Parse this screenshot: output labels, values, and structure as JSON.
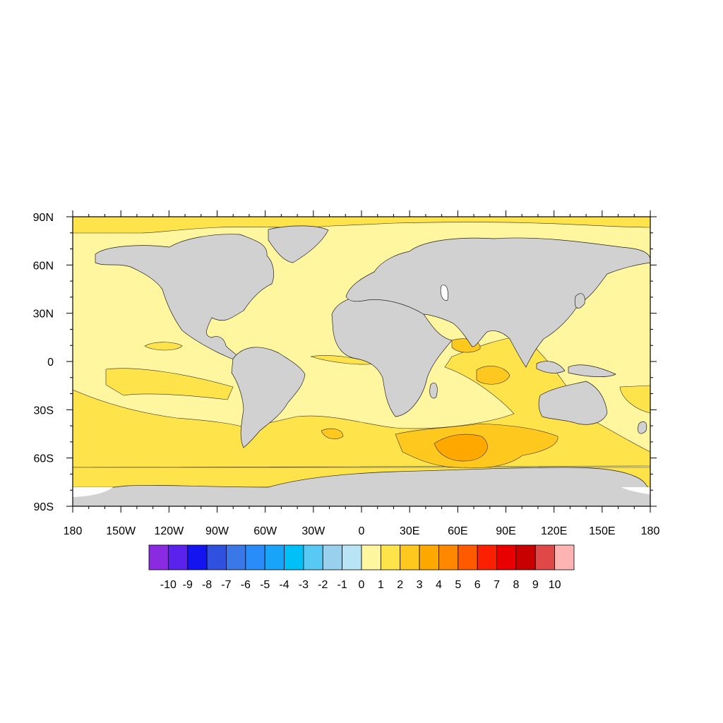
{
  "map": {
    "projection": "cylindrical-equidistant",
    "lon_range": [
      -180,
      180
    ],
    "lat_range": [
      -90,
      90
    ],
    "land_color": "#d1d1d1",
    "ocean_base_color": "#fff69f",
    "x_ticks": [
      {
        "lon": -180,
        "label": "180"
      },
      {
        "lon": -150,
        "label": "150W"
      },
      {
        "lon": -120,
        "label": "120W"
      },
      {
        "lon": -90,
        "label": "90W"
      },
      {
        "lon": -60,
        "label": "60W"
      },
      {
        "lon": -30,
        "label": "30W"
      },
      {
        "lon": 0,
        "label": "0"
      },
      {
        "lon": 30,
        "label": "30E"
      },
      {
        "lon": 60,
        "label": "60E"
      },
      {
        "lon": 90,
        "label": "90E"
      },
      {
        "lon": 120,
        "label": "120E"
      },
      {
        "lon": 150,
        "label": "150E"
      },
      {
        "lon": 180,
        "label": "180"
      }
    ],
    "y_ticks": [
      {
        "lat": 90,
        "label": "90N"
      },
      {
        "lat": 60,
        "label": "60N"
      },
      {
        "lat": 30,
        "label": "30N"
      },
      {
        "lat": 0,
        "label": "0"
      },
      {
        "lat": -30,
        "label": "30S"
      },
      {
        "lat": -60,
        "label": "60S"
      },
      {
        "lat": -90,
        "label": "90S"
      }
    ]
  },
  "colorbar": {
    "colors": [
      "#8a2be2",
      "#5a22ec",
      "#1414f0",
      "#3050e0",
      "#3a78e8",
      "#2a8cf8",
      "#18a4f8",
      "#00c0f8",
      "#58c8f4",
      "#98d0ee",
      "#b8e4f6",
      "#fff69f",
      "#ffe34a",
      "#ffc81e",
      "#ffa800",
      "#ff8800",
      "#ff5a00",
      "#fa2000",
      "#e80000",
      "#c80000",
      "#e04848",
      "#ffb4b4"
    ],
    "labels": [
      "-10",
      "-9",
      "-8",
      "-7",
      "-6",
      "-5",
      "-4",
      "-3",
      "-2",
      "-1",
      "0",
      "1",
      "2",
      "3",
      "4",
      "5",
      "6",
      "7",
      "8",
      "9",
      "10"
    ]
  }
}
